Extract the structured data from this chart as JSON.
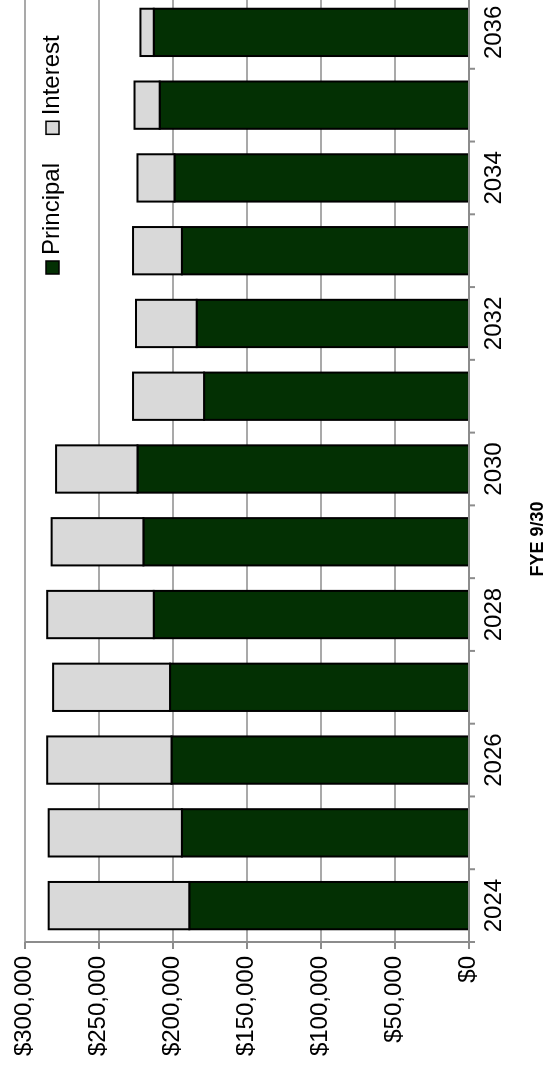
{
  "chart_data": {
    "type": "bar",
    "orientation": "horizontal",
    "stacked": true,
    "ylabel": "FYE 9/30",
    "categories": [
      "2036",
      null,
      "2034",
      null,
      "2032",
      null,
      "2030",
      null,
      "2028",
      null,
      "2026",
      null,
      "2024"
    ],
    "series": [
      {
        "name": "Principal",
        "color": "#033003",
        "values": [
          213000,
          209000,
          199000,
          194000,
          184000,
          179000,
          224000,
          220000,
          213000,
          202000,
          201000,
          194000,
          189000
        ]
      },
      {
        "name": "Interest",
        "color": "#d9d9d9",
        "values": [
          9000,
          17000,
          25000,
          33000,
          41000,
          48000,
          55000,
          62000,
          72000,
          79000,
          84000,
          90000,
          95000
        ]
      }
    ],
    "xlim": [
      300000,
      0
    ],
    "xticks": [
      {
        "value": 300000,
        "label": "$300,000"
      },
      {
        "value": 250000,
        "label": "$250,000"
      },
      {
        "value": 200000,
        "label": "$200,000"
      },
      {
        "value": 150000,
        "label": "$150,000"
      },
      {
        "value": 100000,
        "label": "$100,000"
      },
      {
        "value": 50000,
        "label": "$50,000"
      },
      {
        "value": 0,
        "label": "$0"
      }
    ],
    "grid": "x",
    "legend": "top left"
  }
}
